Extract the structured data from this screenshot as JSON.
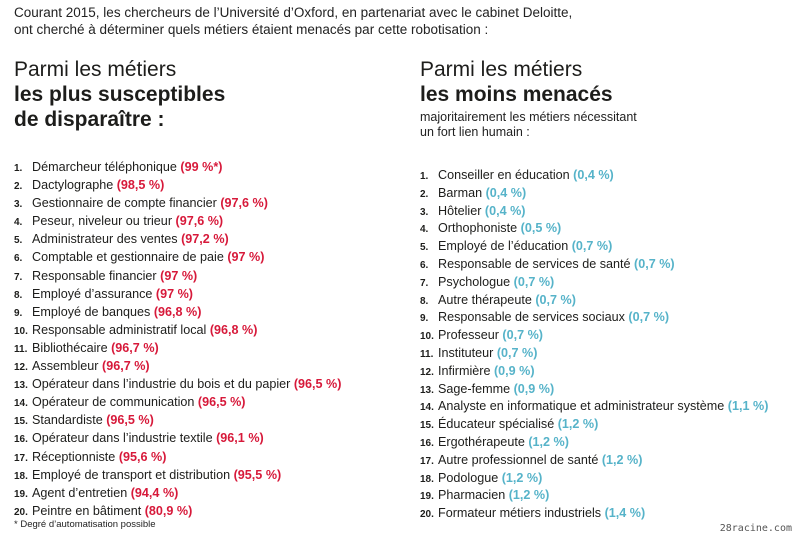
{
  "intro": {
    "line1": "Courant 2015, les chercheurs de l’Université d’Oxford, en partenariat avec le cabinet Deloitte,",
    "line2": "ont cherché à déterminer quels métiers étaient menacés par cette robotisation :"
  },
  "left": {
    "heading_line1": "Parmi les métiers",
    "heading_line2": "les plus susceptibles",
    "heading_line3": "de disparaître :",
    "items": [
      {
        "num": "1.",
        "job": "Démarcheur téléphonique",
        "pct": "(99 %*)"
      },
      {
        "num": "2.",
        "job": "Dactylographe",
        "pct": "(98,5 %)"
      },
      {
        "num": "3.",
        "job": "Gestionnaire de compte financier",
        "pct": "(97,6 %)"
      },
      {
        "num": "4.",
        "job": "Peseur, niveleur ou trieur",
        "pct": "(97,6 %)"
      },
      {
        "num": "5.",
        "job": "Administrateur des ventes",
        "pct": "(97,2 %)"
      },
      {
        "num": "6.",
        "job": "Comptable et gestionnaire de paie",
        "pct": "(97 %)"
      },
      {
        "num": "7.",
        "job": "Responsable financier",
        "pct": "(97 %)"
      },
      {
        "num": "8.",
        "job": "Employé d’assurance",
        "pct": "(97 %)"
      },
      {
        "num": "9.",
        "job": "Employé de banques",
        "pct": "(96,8 %)"
      },
      {
        "num": "10.",
        "job": "Responsable administratif local",
        "pct": "(96,8 %)"
      },
      {
        "num": "11.",
        "job": "Bibliothécaire",
        "pct": "(96,7 %)"
      },
      {
        "num": "12.",
        "job": "Assembleur",
        "pct": "(96,7 %)"
      },
      {
        "num": "13.",
        "job": "Opérateur dans l’industrie du bois et du papier",
        "pct": "(96,5 %)"
      },
      {
        "num": "14.",
        "job": "Opérateur de communication",
        "pct": "(96,5 %)"
      },
      {
        "num": "15.",
        "job": "Standardiste",
        "pct": "(96,5 %)"
      },
      {
        "num": "16.",
        "job": "Opérateur dans l’industrie textile",
        "pct": "(96,1 %)"
      },
      {
        "num": "17.",
        "job": "Réceptionniste",
        "pct": "(95,6 %)"
      },
      {
        "num": "18.",
        "job": "Employé de transport et distribution",
        "pct": "(95,5 %)"
      },
      {
        "num": "19.",
        "job": "Agent d’entretien",
        "pct": "(94,4 %)"
      },
      {
        "num": "20.",
        "job": "Peintre en bâtiment",
        "pct": "(80,9 %)"
      }
    ]
  },
  "right": {
    "heading_line1": "Parmi les métiers",
    "heading_line2": "les moins menacés",
    "subtitle_line1": "majoritairement les métiers nécessitant",
    "subtitle_line2": "un fort lien humain :",
    "items": [
      {
        "num": "1.",
        "job": "Conseiller en éducation",
        "pct": "(0,4 %)"
      },
      {
        "num": "2.",
        "job": "Barman",
        "pct": "(0,4 %)"
      },
      {
        "num": "3.",
        "job": "Hôtelier",
        "pct": "(0,4 %)"
      },
      {
        "num": "4.",
        "job": "Orthophoniste",
        "pct": "(0,5 %)"
      },
      {
        "num": "5.",
        "job": "Employé de l’éducation",
        "pct": "(0,7 %)"
      },
      {
        "num": "6.",
        "job": "Responsable de services de santé",
        "pct": "(0,7 %)"
      },
      {
        "num": "7.",
        "job": "Psychologue",
        "pct": "(0,7 %)"
      },
      {
        "num": "8.",
        "job": "Autre thérapeute",
        "pct": "(0,7 %)"
      },
      {
        "num": "9.",
        "job": "Responsable de services sociaux",
        "pct": "(0,7 %)"
      },
      {
        "num": "10.",
        "job": "Professeur",
        "pct": "(0,7 %)"
      },
      {
        "num": "11.",
        "job": "Instituteur",
        "pct": "(0,7 %)"
      },
      {
        "num": "12.",
        "job": "Infirmière",
        "pct": "(0,9 %)"
      },
      {
        "num": "13.",
        "job": "Sage-femme",
        "pct": "(0,9 %)"
      },
      {
        "num": "14.",
        "job": "Analyste en informatique et administrateur système",
        "pct": "(1,1 %)"
      },
      {
        "num": "15.",
        "job": "Éducateur spécialisé",
        "pct": "(1,2 %)"
      },
      {
        "num": "16.",
        "job": "Ergothérapeute",
        "pct": "(1,2 %)"
      },
      {
        "num": "17.",
        "job": "Autre professionnel de santé",
        "pct": "(1,2 %)"
      },
      {
        "num": "18.",
        "job": "Podologue",
        "pct": "(1,2 %)"
      },
      {
        "num": "19.",
        "job": "Pharmacien",
        "pct": "(1,2 %)"
      },
      {
        "num": "20.",
        "job": "Formateur métiers industriels",
        "pct": "(1,4 %)"
      }
    ]
  },
  "footnote": "* Degré d’automatisation possible",
  "source": "28racine.com",
  "colors": {
    "high_risk": "#d7193a",
    "low_risk": "#56b3c9"
  }
}
